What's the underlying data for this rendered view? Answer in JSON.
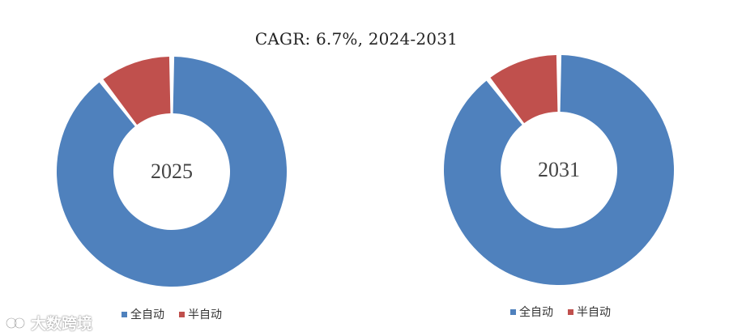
{
  "title": "CAGR:  6.7%, 2024-2031",
  "colors": {
    "auto": "#4F81BD",
    "semi": "#C0504D"
  },
  "chart_data": [
    {
      "type": "pie",
      "label": "2025",
      "categories": [
        "全自动",
        "半自动"
      ],
      "values": [
        89.5,
        10.5
      ],
      "legend_position": "bottom"
    },
    {
      "type": "pie",
      "label": "2031",
      "categories": [
        "全自动",
        "半自动"
      ],
      "values": [
        89.5,
        10.5
      ],
      "legend_position": "bottom"
    }
  ],
  "legend": [
    {
      "label": "全自动",
      "color": "#4F81BD"
    },
    {
      "label": "半自动",
      "color": "#C0504D"
    }
  ],
  "watermark": {
    "text": "大数跨境",
    "icon": "logo-icon"
  }
}
